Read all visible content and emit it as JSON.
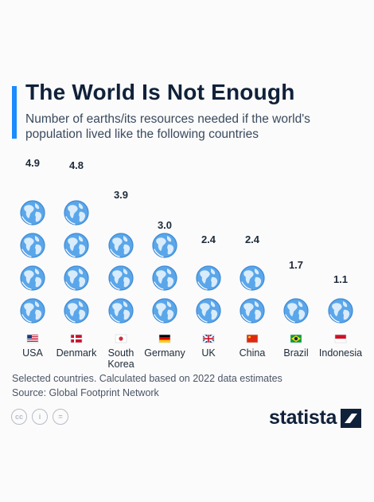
{
  "header": {
    "title": "The World Is Not Enough",
    "subtitle": "Number of earths/its resources needed if the world's population lived like the following countries"
  },
  "chart_data": {
    "type": "pictogram",
    "categories": [
      "USA",
      "Denmark",
      "South Korea",
      "Germany",
      "UK",
      "China",
      "Brazil",
      "Indonesia"
    ],
    "values": [
      4.9,
      4.8,
      3.9,
      3.0,
      2.4,
      2.4,
      1.7,
      1.1
    ],
    "value_labels": [
      "4.9",
      "4.8",
      "3.9",
      "3.0",
      "2.4",
      "2.4",
      "1.7",
      "1.1"
    ],
    "unit_icon": "earth-globe-icon"
  },
  "footer": {
    "note": "Selected countries. Calculated based on 2022 data estimates",
    "source": "Source: Global Footprint Network",
    "license_icons": [
      "creative-commons-icon",
      "attribution-icon",
      "no-derivatives-icon"
    ],
    "license_glyphs": [
      "cc",
      "i",
      "="
    ],
    "brand": "statista"
  },
  "colors": {
    "accent": "#1a8cff",
    "globe_fill": "#5aa6ea",
    "globe_land": "#d9ecfb",
    "title": "#10213a"
  }
}
